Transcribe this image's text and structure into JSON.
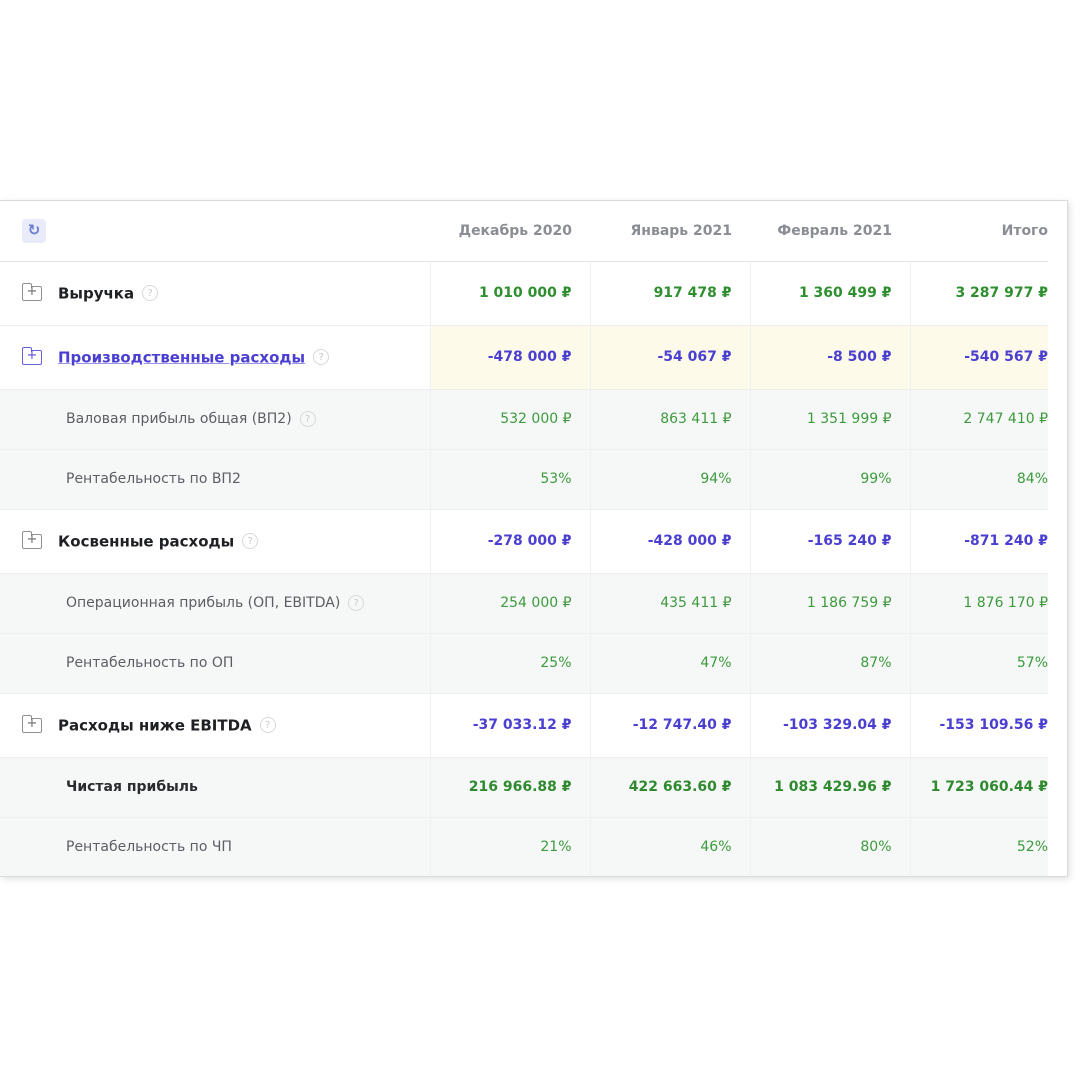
{
  "header": {
    "refresh_icon": "refresh-icon",
    "columns": [
      "Декабрь 2020",
      "Январь 2021",
      "Февраль 2021",
      "Итого"
    ]
  },
  "rows": [
    {
      "type": "group",
      "label": "Выручка",
      "sign": "pos",
      "values": [
        "1 010 000 ₽",
        "917 478 ₽",
        "1 360 499 ₽",
        "3 287 977 ₽"
      ]
    },
    {
      "type": "group",
      "label": "Производственные расходы",
      "sign": "neg",
      "highlight": true,
      "values": [
        "-478 000 ₽",
        "-54 067 ₽",
        "-8 500 ₽",
        "-540 567 ₽"
      ]
    },
    {
      "type": "sub",
      "label": "Валовая прибыль общая (ВП2)",
      "help": true,
      "values": [
        "532 000 ₽",
        "863 411 ₽",
        "1 351 999 ₽",
        "2 747 410 ₽"
      ]
    },
    {
      "type": "sub",
      "label": "Рентабельность по ВП2",
      "values": [
        "53%",
        "94%",
        "99%",
        "84%"
      ]
    },
    {
      "type": "group",
      "label": "Косвенные расходы",
      "sign": "neg",
      "values": [
        "-278 000 ₽",
        "-428 000 ₽",
        "-165 240 ₽",
        "-871 240 ₽"
      ]
    },
    {
      "type": "sub",
      "label": "Операционная прибыль (ОП, EBITDA)",
      "help": true,
      "values": [
        "254 000 ₽",
        "435 411 ₽",
        "1 186 759 ₽",
        "1 876 170 ₽"
      ]
    },
    {
      "type": "sub",
      "label": "Рентабельность по ОП",
      "values": [
        "25%",
        "47%",
        "87%",
        "57%"
      ]
    },
    {
      "type": "group",
      "label": "Расходы ниже EBITDA",
      "sign": "neg",
      "values": [
        "-37 033.12 ₽",
        "-12 747.40 ₽",
        "-103 329.04 ₽",
        "-153 109.56 ₽"
      ]
    },
    {
      "type": "sub",
      "label": "Чистая прибыль",
      "strong": true,
      "values": [
        "216 966.88 ₽",
        "422 663.60 ₽",
        "1 083 429.96 ₽",
        "1 723 060.44 ₽"
      ]
    },
    {
      "type": "sub",
      "label": "Рентабельность по ЧП",
      "values": [
        "21%",
        "46%",
        "80%",
        "52%"
      ]
    }
  ],
  "colors": {
    "positive": "#2f8f2f",
    "negative": "#4a3fd0",
    "highlight": "#fdfaea",
    "subrow_bg": "#f6f8f7"
  }
}
